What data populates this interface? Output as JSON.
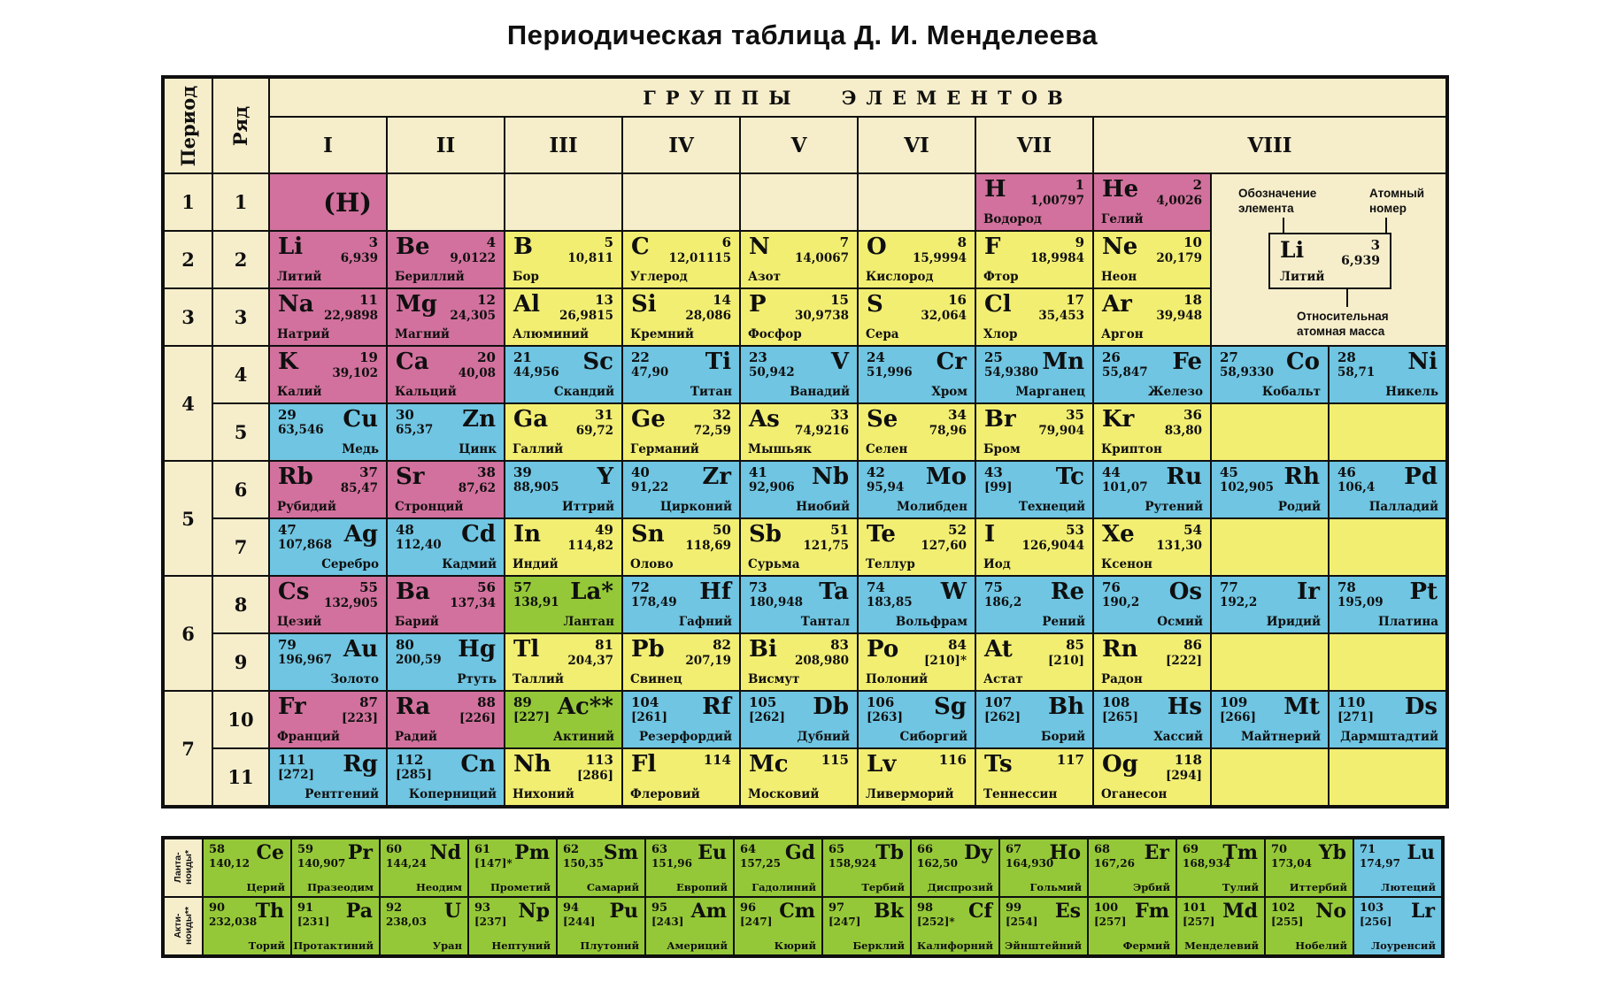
{
  "title": "Периодическая таблица Д. И. Менделеева",
  "header": {
    "period_label": "Период",
    "row_label": "Ряд",
    "groups_banner": "ГРУППЫ ЭЛЕМЕНТОВ",
    "group_labels": [
      "I",
      "II",
      "III",
      "IV",
      "V",
      "VI",
      "VII",
      "VIII"
    ]
  },
  "legend": {
    "symbol_label": "Обозначение\nэлемента",
    "number_label": "Атомный\nномер",
    "mass_label": "Относительная\nатомная масса",
    "sample": {
      "symbol": "Li",
      "number": "3",
      "mass": "6,939",
      "name": "Литий"
    }
  },
  "colors": {
    "page": "#ffffff",
    "cream": "#f6eecb",
    "pink": "#d2719d",
    "yellow": "#f2ee72",
    "blue": "#6fc5e2",
    "green": "#95c838",
    "ink": "#0f0f0f"
  },
  "periods": [
    {
      "label": "1",
      "span": 1
    },
    {
      "label": "2",
      "span": 1
    },
    {
      "label": "3",
      "span": 1
    },
    {
      "label": "4",
      "span": 2
    },
    {
      "label": "5",
      "span": 2
    },
    {
      "label": "6",
      "span": 2
    },
    {
      "label": "7",
      "span": 2
    }
  ],
  "row_numbers": [
    "1",
    "2",
    "3",
    "4",
    "5",
    "6",
    "7",
    "8",
    "9",
    "10",
    "11"
  ],
  "rows": [
    [
      {
        "s": "(H)",
        "bg": "pink",
        "v": "P"
      },
      {
        "bg": "cream",
        "v": "E"
      },
      {
        "bg": "cream",
        "v": "E"
      },
      {
        "bg": "cream",
        "v": "E"
      },
      {
        "bg": "cream",
        "v": "E"
      },
      {
        "bg": "cream",
        "v": "E"
      },
      {
        "s": "H",
        "n": "1",
        "m": "1,00797",
        "name": "Водород",
        "bg": "pink",
        "v": "A"
      },
      {
        "s": "He",
        "n": "2",
        "m": "4,0026",
        "name": "Гелий",
        "bg": "pink",
        "v": "A"
      }
    ],
    [
      {
        "s": "Li",
        "n": "3",
        "m": "6,939",
        "name": "Литий",
        "bg": "pink",
        "v": "A"
      },
      {
        "s": "Be",
        "n": "4",
        "m": "9,0122",
        "name": "Бериллий",
        "bg": "pink",
        "v": "A"
      },
      {
        "s": "B",
        "n": "5",
        "m": "10,811",
        "name": "Бор",
        "bg": "yellow",
        "v": "A"
      },
      {
        "s": "C",
        "n": "6",
        "m": "12,01115",
        "name": "Углерод",
        "bg": "yellow",
        "v": "A"
      },
      {
        "s": "N",
        "n": "7",
        "m": "14,0067",
        "name": "Азот",
        "bg": "yellow",
        "v": "A"
      },
      {
        "s": "O",
        "n": "8",
        "m": "15,9994",
        "name": "Кислород",
        "bg": "yellow",
        "v": "A"
      },
      {
        "s": "F",
        "n": "9",
        "m": "18,9984",
        "name": "Фтор",
        "bg": "yellow",
        "v": "A"
      },
      {
        "s": "Ne",
        "n": "10",
        "m": "20,179",
        "name": "Неон",
        "bg": "yellow",
        "v": "A"
      }
    ],
    [
      {
        "s": "Na",
        "n": "11",
        "m": "22,9898",
        "name": "Натрий",
        "bg": "pink",
        "v": "A"
      },
      {
        "s": "Mg",
        "n": "12",
        "m": "24,305",
        "name": "Магний",
        "bg": "pink",
        "v": "A"
      },
      {
        "s": "Al",
        "n": "13",
        "m": "26,9815",
        "name": "Алюминий",
        "bg": "yellow",
        "v": "A"
      },
      {
        "s": "Si",
        "n": "14",
        "m": "28,086",
        "name": "Кремний",
        "bg": "yellow",
        "v": "A"
      },
      {
        "s": "P",
        "n": "15",
        "m": "30,9738",
        "name": "Фосфор",
        "bg": "yellow",
        "v": "A"
      },
      {
        "s": "S",
        "n": "16",
        "m": "32,064",
        "name": "Сера",
        "bg": "yellow",
        "v": "A"
      },
      {
        "s": "Cl",
        "n": "17",
        "m": "35,453",
        "name": "Хлор",
        "bg": "yellow",
        "v": "A"
      },
      {
        "s": "Ar",
        "n": "18",
        "m": "39,948",
        "name": "Аргон",
        "bg": "yellow",
        "v": "A"
      }
    ],
    [
      {
        "s": "K",
        "n": "19",
        "m": "39,102",
        "name": "Калий",
        "bg": "pink",
        "v": "A"
      },
      {
        "s": "Ca",
        "n": "20",
        "m": "40,08",
        "name": "Кальций",
        "bg": "pink",
        "v": "A"
      },
      {
        "s": "Sc",
        "n": "21",
        "m": "44,956",
        "name": "Скандий",
        "bg": "blue",
        "v": "B"
      },
      {
        "s": "Ti",
        "n": "22",
        "m": "47,90",
        "name": "Титан",
        "bg": "blue",
        "v": "B"
      },
      {
        "s": "V",
        "n": "23",
        "m": "50,942",
        "name": "Ванадий",
        "bg": "blue",
        "v": "B"
      },
      {
        "s": "Cr",
        "n": "24",
        "m": "51,996",
        "name": "Хром",
        "bg": "blue",
        "v": "B"
      },
      {
        "s": "Mn",
        "n": "25",
        "m": "54,9380",
        "name": "Марганец",
        "bg": "blue",
        "v": "B"
      },
      {
        "s": "Fe",
        "n": "26",
        "m": "55,847",
        "name": "Железо",
        "bg": "blue",
        "v": "B"
      },
      {
        "s": "Co",
        "n": "27",
        "m": "58,9330",
        "name": "Кобальт",
        "bg": "blue",
        "v": "B"
      },
      {
        "s": "Ni",
        "n": "28",
        "m": "58,71",
        "name": "Никель",
        "bg": "blue",
        "v": "B"
      }
    ],
    [
      {
        "s": "Cu",
        "n": "29",
        "m": "63,546",
        "name": "Медь",
        "bg": "blue",
        "v": "B"
      },
      {
        "s": "Zn",
        "n": "30",
        "m": "65,37",
        "name": "Цинк",
        "bg": "blue",
        "v": "B"
      },
      {
        "s": "Ga",
        "n": "31",
        "m": "69,72",
        "name": "Галлий",
        "bg": "yellow",
        "v": "A"
      },
      {
        "s": "Ge",
        "n": "32",
        "m": "72,59",
        "name": "Германий",
        "bg": "yellow",
        "v": "A"
      },
      {
        "s": "As",
        "n": "33",
        "m": "74,9216",
        "name": "Мышьяк",
        "bg": "yellow",
        "v": "A"
      },
      {
        "s": "Se",
        "n": "34",
        "m": "78,96",
        "name": "Селен",
        "bg": "yellow",
        "v": "A"
      },
      {
        "s": "Br",
        "n": "35",
        "m": "79,904",
        "name": "Бром",
        "bg": "yellow",
        "v": "A"
      },
      {
        "s": "Kr",
        "n": "36",
        "m": "83,80",
        "name": "Криптон",
        "bg": "yellow",
        "v": "A"
      },
      {
        "bg": "yellow",
        "v": "E"
      },
      {
        "bg": "yellow",
        "v": "E"
      }
    ],
    [
      {
        "s": "Rb",
        "n": "37",
        "m": "85,47",
        "name": "Рубидий",
        "bg": "pink",
        "v": "A"
      },
      {
        "s": "Sr",
        "n": "38",
        "m": "87,62",
        "name": "Стронций",
        "bg": "pink",
        "v": "A"
      },
      {
        "s": "Y",
        "n": "39",
        "m": "88,905",
        "name": "Иттрий",
        "bg": "blue",
        "v": "B"
      },
      {
        "s": "Zr",
        "n": "40",
        "m": "91,22",
        "name": "Цирконий",
        "bg": "blue",
        "v": "B"
      },
      {
        "s": "Nb",
        "n": "41",
        "m": "92,906",
        "name": "Ниобий",
        "bg": "blue",
        "v": "B"
      },
      {
        "s": "Mo",
        "n": "42",
        "m": "95,94",
        "name": "Молибден",
        "bg": "blue",
        "v": "B"
      },
      {
        "s": "Tc",
        "n": "43",
        "m": "[99]",
        "name": "Технеций",
        "bg": "blue",
        "v": "B"
      },
      {
        "s": "Ru",
        "n": "44",
        "m": "101,07",
        "name": "Рутений",
        "bg": "blue",
        "v": "B"
      },
      {
        "s": "Rh",
        "n": "45",
        "m": "102,905",
        "name": "Родий",
        "bg": "blue",
        "v": "B"
      },
      {
        "s": "Pd",
        "n": "46",
        "m": "106,4",
        "name": "Палладий",
        "bg": "blue",
        "v": "B"
      }
    ],
    [
      {
        "s": "Ag",
        "n": "47",
        "m": "107,868",
        "name": "Серебро",
        "bg": "blue",
        "v": "B"
      },
      {
        "s": "Cd",
        "n": "48",
        "m": "112,40",
        "name": "Кадмий",
        "bg": "blue",
        "v": "B"
      },
      {
        "s": "In",
        "n": "49",
        "m": "114,82",
        "name": "Индий",
        "bg": "yellow",
        "v": "A"
      },
      {
        "s": "Sn",
        "n": "50",
        "m": "118,69",
        "name": "Олово",
        "bg": "yellow",
        "v": "A"
      },
      {
        "s": "Sb",
        "n": "51",
        "m": "121,75",
        "name": "Сурьма",
        "bg": "yellow",
        "v": "A"
      },
      {
        "s": "Te",
        "n": "52",
        "m": "127,60",
        "name": "Теллур",
        "bg": "yellow",
        "v": "A"
      },
      {
        "s": "I",
        "n": "53",
        "m": "126,9044",
        "name": "Иод",
        "bg": "yellow",
        "v": "A"
      },
      {
        "s": "Xe",
        "n": "54",
        "m": "131,30",
        "name": "Ксенон",
        "bg": "yellow",
        "v": "A"
      },
      {
        "bg": "yellow",
        "v": "E"
      },
      {
        "bg": "yellow",
        "v": "E"
      }
    ],
    [
      {
        "s": "Cs",
        "n": "55",
        "m": "132,905",
        "name": "Цезий",
        "bg": "pink",
        "v": "A"
      },
      {
        "s": "Ba",
        "n": "56",
        "m": "137,34",
        "name": "Барий",
        "bg": "pink",
        "v": "A"
      },
      {
        "s": "La*",
        "n": "57",
        "m": "138,91",
        "name": "Лантан",
        "bg": "green",
        "v": "B"
      },
      {
        "s": "Hf",
        "n": "72",
        "m": "178,49",
        "name": "Гафний",
        "bg": "blue",
        "v": "B"
      },
      {
        "s": "Ta",
        "n": "73",
        "m": "180,948",
        "name": "Тантал",
        "bg": "blue",
        "v": "B"
      },
      {
        "s": "W",
        "n": "74",
        "m": "183,85",
        "name": "Вольфрам",
        "bg": "blue",
        "v": "B"
      },
      {
        "s": "Re",
        "n": "75",
        "m": "186,2",
        "name": "Рений",
        "bg": "blue",
        "v": "B"
      },
      {
        "s": "Os",
        "n": "76",
        "m": "190,2",
        "name": "Осмий",
        "bg": "blue",
        "v": "B"
      },
      {
        "s": "Ir",
        "n": "77",
        "m": "192,2",
        "name": "Иридий",
        "bg": "blue",
        "v": "B"
      },
      {
        "s": "Pt",
        "n": "78",
        "m": "195,09",
        "name": "Платина",
        "bg": "blue",
        "v": "B"
      }
    ],
    [
      {
        "s": "Au",
        "n": "79",
        "m": "196,967",
        "name": "Золото",
        "bg": "blue",
        "v": "B"
      },
      {
        "s": "Hg",
        "n": "80",
        "m": "200,59",
        "name": "Ртуть",
        "bg": "blue",
        "v": "B"
      },
      {
        "s": "Tl",
        "n": "81",
        "m": "204,37",
        "name": "Таллий",
        "bg": "yellow",
        "v": "A"
      },
      {
        "s": "Pb",
        "n": "82",
        "m": "207,19",
        "name": "Свинец",
        "bg": "yellow",
        "v": "A"
      },
      {
        "s": "Bi",
        "n": "83",
        "m": "208,980",
        "name": "Висмут",
        "bg": "yellow",
        "v": "A"
      },
      {
        "s": "Po",
        "n": "84",
        "m": "[210]*",
        "name": "Полоний",
        "bg": "yellow",
        "v": "A"
      },
      {
        "s": "At",
        "n": "85",
        "m": "[210]",
        "name": "Астат",
        "bg": "yellow",
        "v": "A"
      },
      {
        "s": "Rn",
        "n": "86",
        "m": "[222]",
        "name": "Радон",
        "bg": "yellow",
        "v": "A"
      },
      {
        "bg": "yellow",
        "v": "E"
      },
      {
        "bg": "yellow",
        "v": "E"
      }
    ],
    [
      {
        "s": "Fr",
        "n": "87",
        "m": "[223]",
        "name": "Франций",
        "bg": "pink",
        "v": "A"
      },
      {
        "s": "Ra",
        "n": "88",
        "m": "[226]",
        "name": "Радий",
        "bg": "pink",
        "v": "A"
      },
      {
        "s": "Ac**",
        "n": "89",
        "m": "[227]",
        "name": "Актиний",
        "bg": "green",
        "v": "B"
      },
      {
        "s": "Rf",
        "n": "104",
        "m": "[261]",
        "name": "Резерфордий",
        "bg": "blue",
        "v": "B"
      },
      {
        "s": "Db",
        "n": "105",
        "m": "[262]",
        "name": "Дубний",
        "bg": "blue",
        "v": "B"
      },
      {
        "s": "Sg",
        "n": "106",
        "m": "[263]",
        "name": "Сиборгий",
        "bg": "blue",
        "v": "B"
      },
      {
        "s": "Bh",
        "n": "107",
        "m": "[262]",
        "name": "Борий",
        "bg": "blue",
        "v": "B"
      },
      {
        "s": "Hs",
        "n": "108",
        "m": "[265]",
        "name": "Хассий",
        "bg": "blue",
        "v": "B"
      },
      {
        "s": "Mt",
        "n": "109",
        "m": "[266]",
        "name": "Майтнерий",
        "bg": "blue",
        "v": "B"
      },
      {
        "s": "Ds",
        "n": "110",
        "m": "[271]",
        "name": "Дармштадтий",
        "bg": "blue",
        "v": "B"
      }
    ],
    [
      {
        "s": "Rg",
        "n": "111",
        "m": "[272]",
        "name": "Рентгений",
        "bg": "blue",
        "v": "B"
      },
      {
        "s": "Cn",
        "n": "112",
        "m": "[285]",
        "name": "Коперниций",
        "bg": "blue",
        "v": "B"
      },
      {
        "s": "Nh",
        "n": "113",
        "m": "[286]",
        "name": "Нихоний",
        "bg": "yellow",
        "v": "A"
      },
      {
        "s": "Fl",
        "n": "114",
        "m": "",
        "name": "Флеровий",
        "bg": "yellow",
        "v": "A"
      },
      {
        "s": "Mc",
        "n": "115",
        "m": "",
        "name": "Московий",
        "bg": "yellow",
        "v": "A"
      },
      {
        "s": "Lv",
        "n": "116",
        "m": "",
        "name": "Ливерморий",
        "bg": "yellow",
        "v": "A"
      },
      {
        "s": "Ts",
        "n": "117",
        "m": "",
        "name": "Теннессин",
        "bg": "yellow",
        "v": "A"
      },
      {
        "s": "Og",
        "n": "118",
        "m": "[294]",
        "name": "Оганесон",
        "bg": "yellow",
        "v": "A"
      },
      {
        "bg": "yellow",
        "v": "E"
      },
      {
        "bg": "yellow",
        "v": "E"
      }
    ]
  ],
  "footnotes": [
    {
      "label": "Ланта-\nноиды*",
      "cells": [
        {
          "s": "Ce",
          "n": "58",
          "m": "140,12",
          "name": "Церий",
          "bg": "green"
        },
        {
          "s": "Pr",
          "n": "59",
          "m": "140,907",
          "name": "Празеодим",
          "bg": "green"
        },
        {
          "s": "Nd",
          "n": "60",
          "m": "144,24",
          "name": "Неодим",
          "bg": "green"
        },
        {
          "s": "Pm",
          "n": "61",
          "m": "[147]*",
          "name": "Прометий",
          "bg": "green"
        },
        {
          "s": "Sm",
          "n": "62",
          "m": "150,35",
          "name": "Самарий",
          "bg": "green"
        },
        {
          "s": "Eu",
          "n": "63",
          "m": "151,96",
          "name": "Европий",
          "bg": "green"
        },
        {
          "s": "Gd",
          "n": "64",
          "m": "157,25",
          "name": "Гадолиний",
          "bg": "green"
        },
        {
          "s": "Tb",
          "n": "65",
          "m": "158,924",
          "name": "Тербий",
          "bg": "green"
        },
        {
          "s": "Dy",
          "n": "66",
          "m": "162,50",
          "name": "Диспрозий",
          "bg": "green"
        },
        {
          "s": "Ho",
          "n": "67",
          "m": "164,930",
          "name": "Гольмий",
          "bg": "green"
        },
        {
          "s": "Er",
          "n": "68",
          "m": "167,26",
          "name": "Эрбий",
          "bg": "green"
        },
        {
          "s": "Tm",
          "n": "69",
          "m": "168,934",
          "name": "Тулий",
          "bg": "green"
        },
        {
          "s": "Yb",
          "n": "70",
          "m": "173,04",
          "name": "Иттербий",
          "bg": "green"
        },
        {
          "s": "Lu",
          "n": "71",
          "m": "174,97",
          "name": "Лютеций",
          "bg": "blue"
        }
      ]
    },
    {
      "label": "Акти-\nноиды**",
      "cells": [
        {
          "s": "Th",
          "n": "90",
          "m": "232,038",
          "name": "Торий",
          "bg": "green"
        },
        {
          "s": "Pa",
          "n": "91",
          "m": "[231]",
          "name": "Протактиний",
          "bg": "green"
        },
        {
          "s": "U",
          "n": "92",
          "m": "238,03",
          "name": "Уран",
          "bg": "green"
        },
        {
          "s": "Np",
          "n": "93",
          "m": "[237]",
          "name": "Нептуний",
          "bg": "green"
        },
        {
          "s": "Pu",
          "n": "94",
          "m": "[244]",
          "name": "Плутоний",
          "bg": "green"
        },
        {
          "s": "Am",
          "n": "95",
          "m": "[243]",
          "name": "Америций",
          "bg": "green"
        },
        {
          "s": "Cm",
          "n": "96",
          "m": "[247]",
          "name": "Кюрий",
          "bg": "green"
        },
        {
          "s": "Bk",
          "n": "97",
          "m": "[247]",
          "name": "Берклий",
          "bg": "green"
        },
        {
          "s": "Cf",
          "n": "98",
          "m": "[252]*",
          "name": "Калифорний",
          "bg": "green"
        },
        {
          "s": "Es",
          "n": "99",
          "m": "[254]",
          "name": "Эйнштейний",
          "bg": "green"
        },
        {
          "s": "Fm",
          "n": "100",
          "m": "[257]",
          "name": "Фермий",
          "bg": "green"
        },
        {
          "s": "Md",
          "n": "101",
          "m": "[257]",
          "name": "Менделевий",
          "bg": "green"
        },
        {
          "s": "No",
          "n": "102",
          "m": "[255]",
          "name": "Нобелий",
          "bg": "green"
        },
        {
          "s": "Lr",
          "n": "103",
          "m": "[256]",
          "name": "Лоуренсий",
          "bg": "blue"
        }
      ]
    }
  ]
}
